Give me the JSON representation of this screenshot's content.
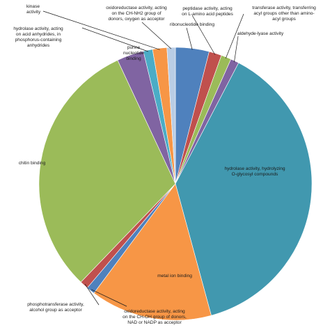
{
  "chart_data": {
    "type": "pie",
    "title": "",
    "slices": [
      {
        "label": "ribonucleotide binding",
        "value": 4.0,
        "color": "#4f81bd"
      },
      {
        "label": "peptidase activity, acting on L-amino acid peptides",
        "value": 1.5,
        "color": "#c0504d"
      },
      {
        "label": "transferase activity, transferring acyl groups other than amino-acyl groups",
        "value": 1.2,
        "color": "#9bbb59"
      },
      {
        "label": "aldehyde-lyase activity",
        "value": 1.0,
        "color": "#8064a2"
      },
      {
        "label": "hydrolase activity, hydrolyzing O-glycosyl compounds",
        "value": 38.3,
        "color": "#4198af"
      },
      {
        "label": "metal ion binding",
        "value": 14.5,
        "color": "#f79646"
      },
      {
        "label": "oxidoreductase activity, acting on the CH-OH group of donors, NAD or NADP as acceptor",
        "value": 1.0,
        "color": "#4f81bd"
      },
      {
        "label": "phosphotransferase activity, alcohol group as acceptor",
        "value": 1.0,
        "color": "#c0504d"
      },
      {
        "label": "chitin binding",
        "value": 31.0,
        "color": "#9bbb59"
      },
      {
        "label": "purine nucleotide binding",
        "value": 3.2,
        "color": "#8064a2"
      },
      {
        "label": "hydrolase activity, acting on acid anhydrides, in phosphorus-containing anhydrides",
        "value": 1.1,
        "color": "#4bacc6"
      },
      {
        "label": "kinase activity",
        "value": 1.7,
        "color": "#f79646"
      },
      {
        "label": "oxidoreductase activity, acting on the CH-NH2 group of donors, oxygen as acceptor",
        "value": 1.0,
        "color": "#b9cde5"
      }
    ]
  }
}
